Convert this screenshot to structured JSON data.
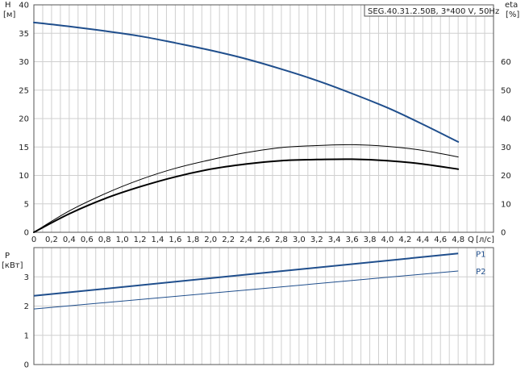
{
  "chart_data": [
    {
      "type": "line",
      "title": "SEG.40.31.2.50B, 3*400 V, 50Hz",
      "left_axis": {
        "label": "H",
        "unit": "[м]",
        "ylim": [
          0,
          40
        ],
        "ticks": [
          0,
          5,
          10,
          15,
          20,
          25,
          30,
          35,
          40
        ]
      },
      "right_axis": {
        "label": "eta",
        "unit": "[%]",
        "ylim": [
          0,
          80
        ],
        "ticks": [
          0,
          10,
          20,
          30,
          40,
          50,
          60
        ]
      },
      "x_axis": {
        "label": "Q",
        "unit": "[л/с]",
        "xlim": [
          0,
          5.2
        ],
        "tick_labels": [
          "0",
          "0,2",
          "0,4",
          "0,6",
          "0,8",
          "1,0",
          "1,2",
          "1,4",
          "1,6",
          "1,8",
          "2,0",
          "2,2",
          "2,4",
          "2,6",
          "2,8",
          "3,0",
          "3,2",
          "3,4",
          "3,6",
          "3,8",
          "4,0",
          "4,2",
          "4,4",
          "4,6",
          "4,8"
        ]
      },
      "grid": true,
      "series": [
        {
          "axis": "left",
          "color": "#1f4e8c",
          "x": [
            0,
            0.4,
            0.8,
            1.2,
            1.6,
            2.0,
            2.4,
            2.8,
            3.2,
            3.6,
            4.0,
            4.4,
            4.8
          ],
          "y": [
            36.9,
            36.2,
            35.4,
            34.5,
            33.3,
            32.0,
            30.5,
            28.7,
            26.7,
            24.4,
            21.9,
            19.0,
            15.9
          ]
        },
        {
          "axis": "right",
          "color": "#000000",
          "width": 1,
          "x": [
            0,
            0.4,
            0.8,
            1.2,
            1.6,
            2.0,
            2.4,
            2.8,
            3.2,
            3.6,
            4.0,
            4.4,
            4.8
          ],
          "y": [
            0,
            7.5,
            13.5,
            18.5,
            22.5,
            25.5,
            28.0,
            29.8,
            30.5,
            30.8,
            30.2,
            28.8,
            26.5
          ]
        },
        {
          "axis": "right",
          "color": "#000000",
          "width": 2,
          "x": [
            0,
            0.4,
            0.8,
            1.2,
            1.6,
            2.0,
            2.4,
            2.8,
            3.2,
            3.6,
            4.0,
            4.4,
            4.8
          ],
          "y": [
            0,
            6.5,
            11.8,
            16.0,
            19.5,
            22.2,
            24.0,
            25.2,
            25.6,
            25.7,
            25.2,
            24.0,
            22.2
          ]
        }
      ]
    },
    {
      "type": "line",
      "left_axis": {
        "label": "P",
        "unit": "[кВт]",
        "ylim": [
          0,
          4
        ],
        "ticks": [
          0,
          1,
          2,
          3
        ]
      },
      "x_axis": {
        "xlim": [
          0,
          5.2
        ]
      },
      "grid": true,
      "series": [
        {
          "name": "P1",
          "color": "#1f4e8c",
          "width": 2,
          "x": [
            0,
            4.8
          ],
          "y": [
            2.35,
            3.8
          ]
        },
        {
          "name": "P2",
          "color": "#1f4e8c",
          "width": 1,
          "x": [
            0,
            4.8
          ],
          "y": [
            1.9,
            3.2
          ]
        }
      ]
    }
  ]
}
